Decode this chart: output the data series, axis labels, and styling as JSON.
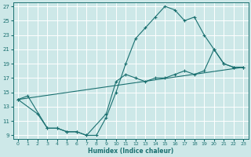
{
  "background_color": "#cde8e8",
  "grid_color": "#b0d8d8",
  "line_color": "#1a7070",
  "xlabel": "Humidex (Indice chaleur)",
  "xlim": [
    -0.5,
    23.5
  ],
  "ylim": [
    8.5,
    27.5
  ],
  "yticks": [
    9,
    11,
    13,
    15,
    17,
    19,
    21,
    23,
    25,
    27
  ],
  "xticks": [
    0,
    1,
    2,
    3,
    4,
    5,
    6,
    7,
    8,
    9,
    10,
    11,
    12,
    13,
    14,
    15,
    16,
    17,
    18,
    19,
    20,
    21,
    22,
    23
  ],
  "line1_x": [
    0,
    1,
    3,
    4,
    5,
    6,
    7,
    8,
    9,
    10,
    11,
    12,
    13,
    14,
    15,
    16,
    17,
    18,
    19,
    20,
    21,
    22,
    23
  ],
  "line1_y": [
    14.0,
    14.5,
    10.0,
    10.0,
    9.5,
    9.5,
    9.0,
    9.0,
    11.5,
    15.0,
    19.0,
    22.5,
    24.0,
    25.5,
    27.0,
    26.5,
    25.0,
    25.5,
    23.0,
    21.0,
    19.0,
    18.5,
    18.5
  ],
  "line2_x": [
    0,
    2,
    3,
    4,
    5,
    6,
    7,
    9,
    10,
    11,
    12,
    13,
    14,
    15,
    16,
    17,
    18,
    19,
    20,
    21,
    22,
    23
  ],
  "line2_y": [
    14.0,
    12.0,
    10.0,
    10.0,
    9.5,
    9.5,
    9.0,
    12.0,
    16.5,
    17.5,
    17.0,
    16.5,
    17.0,
    17.0,
    17.5,
    18.0,
    17.5,
    18.0,
    21.0,
    19.0,
    18.5,
    18.5
  ],
  "line3_x": [
    0,
    23
  ],
  "line3_y": [
    14.0,
    18.5
  ]
}
